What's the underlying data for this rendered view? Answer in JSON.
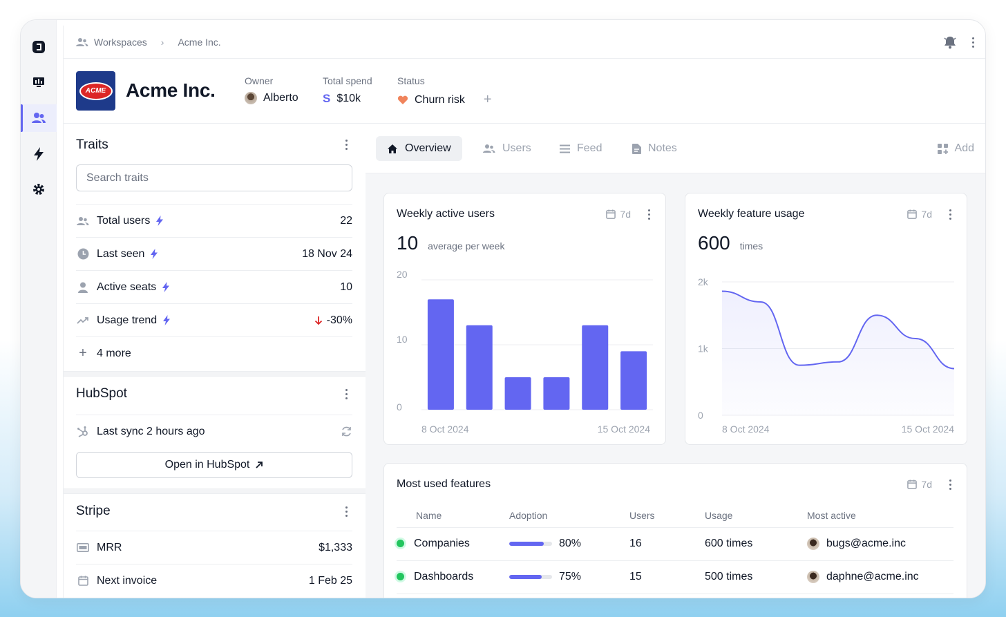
{
  "breadcrumb": {
    "root": "Workspaces",
    "current": "Acme Inc."
  },
  "company": {
    "name": "Acme Inc.",
    "logo_text": "ACME"
  },
  "meta": {
    "owner_label": "Owner",
    "owner_value": "Alberto",
    "spend_label": "Total spend",
    "spend_value": "$10k",
    "status_label": "Status",
    "status_value": "Churn risk"
  },
  "traits": {
    "title": "Traits",
    "search_placeholder": "Search traits",
    "rows": [
      {
        "label": "Total users",
        "value": "22",
        "icon": "users-icon"
      },
      {
        "label": "Last seen",
        "value": "18 Nov 24",
        "icon": "clock-icon"
      },
      {
        "label": "Active seats",
        "value": "10",
        "icon": "user-icon"
      },
      {
        "label": "Usage trend",
        "value": "-30%",
        "icon": "trend-icon"
      }
    ],
    "more": "4 more"
  },
  "hubspot": {
    "title": "HubSpot",
    "sync": "Last sync 2 hours ago",
    "button": "Open in HubSpot"
  },
  "stripe": {
    "title": "Stripe",
    "rows": [
      {
        "label": "MRR",
        "value": "$1,333"
      },
      {
        "label": "Next invoice",
        "value": "1 Feb 25"
      }
    ]
  },
  "tabs": [
    {
      "label": "Overview"
    },
    {
      "label": "Users"
    },
    {
      "label": "Feed"
    },
    {
      "label": "Notes"
    }
  ],
  "tab_add": "Add",
  "wau": {
    "title": "Weekly active users",
    "period": "7d",
    "big": "10",
    "sub": "average per week"
  },
  "wfu": {
    "title": "Weekly feature usage",
    "period": "7d",
    "big": "600",
    "sub": "times"
  },
  "features": {
    "title": "Most used features",
    "period": "7d",
    "columns": [
      "Name",
      "Adoption",
      "Users",
      "Usage",
      "Most active"
    ],
    "rows": [
      {
        "name": "Companies",
        "adoption": "80%",
        "adoption_value": 0.8,
        "users": "16",
        "usage": "600 times",
        "most_active": "bugs@acme.inc"
      },
      {
        "name": "Dashboards",
        "adoption": "75%",
        "adoption_value": 0.75,
        "users": "15",
        "usage": "500 times",
        "most_active": "daphne@acme.inc"
      }
    ]
  },
  "colors": {
    "accent": "#6366f1",
    "positive": "#22c55e",
    "negative": "#dc2626",
    "status": "#f0845c"
  },
  "chart_data": [
    {
      "type": "bar",
      "categories": [
        "8 Oct 2024",
        "",
        "",
        "",
        "",
        "15 Oct 2024"
      ],
      "values": [
        17,
        13,
        5,
        5,
        13,
        9
      ],
      "yticks": [
        "0",
        "10",
        "20"
      ],
      "ylim": [
        0,
        20
      ],
      "xtick_labels": [
        "8 Oct 2024",
        "15 Oct 2024"
      ]
    },
    {
      "type": "area",
      "x": [
        0,
        1,
        2,
        3,
        4,
        5,
        6
      ],
      "values": [
        1860,
        1700,
        750,
        800,
        1500,
        1150,
        700
      ],
      "yticks": [
        "0",
        "1k",
        "2k"
      ],
      "ylim": [
        0,
        2000
      ],
      "xtick_labels": [
        "8 Oct 2024",
        "15 Oct 2024"
      ]
    }
  ]
}
